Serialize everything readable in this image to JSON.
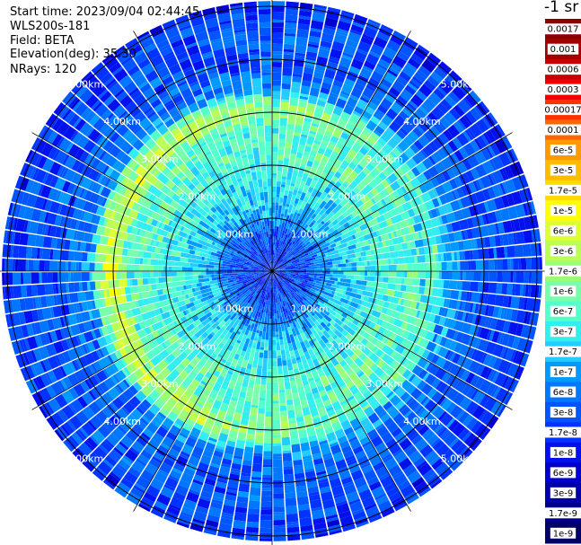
{
  "info": {
    "start_time": "Start time: 2023/09/04 02:44:45",
    "device": "WLS200s-181",
    "field": "Field: BETA",
    "elevation": "Elevation(deg): 35.30",
    "nrays": "NRays: 120"
  },
  "colorbar": {
    "title": "-1 sr",
    "labels": [
      "0.0017",
      "0.001",
      "0.0006",
      "0.0003",
      "0.00017",
      "0.0001",
      "6e-5",
      "3e-5",
      "1.7e-5",
      "1e-5",
      "6e-6",
      "3e-6",
      "1.7e-6",
      "1e-6",
      "6e-7",
      "3e-7",
      "1.7e-7",
      "1e-7",
      "6e-8",
      "3e-8",
      "1.7e-8",
      "1e-8",
      "6e-9",
      "3e-9",
      "1.7e-9",
      "1e-9"
    ],
    "colors": [
      "#8b0000",
      "#a00000",
      "#c80000",
      "#ee0000",
      "#ff3300",
      "#ff6600",
      "#ff9900",
      "#ffbb00",
      "#ffdd00",
      "#ffff00",
      "#ddff33",
      "#bbff55",
      "#99ff77",
      "#77ffaa",
      "#55ffcc",
      "#33eeee",
      "#22ccff",
      "#0099ff",
      "#0077ff",
      "#0055ff",
      "#0033ff",
      "#0011ee",
      "#0000cc",
      "#0000aa",
      "#000088",
      "#000066"
    ]
  },
  "chart_data": {
    "type": "heatmap",
    "projection": "polar-ppi",
    "field": "BETA",
    "unit": "-1 sr",
    "elevation_deg": 35.3,
    "n_rays": 120,
    "range_rings_km": [
      1.0,
      2.0,
      3.0,
      4.0,
      5.0
    ],
    "ring_labels": [
      "1.00km",
      "2.00km",
      "3.00km",
      "4.00km",
      "5.00km"
    ],
    "max_range_km": 5.1,
    "radial_profile": [
      {
        "range_km": 0.25,
        "beta": "1.7e-8"
      },
      {
        "range_km": 0.75,
        "beta": "3e-8"
      },
      {
        "range_km": 1.25,
        "beta": "1.7e-7"
      },
      {
        "range_km": 1.75,
        "beta": "3e-7"
      },
      {
        "range_km": 2.25,
        "beta": "6e-7"
      },
      {
        "range_km": 2.75,
        "beta": "6e-7"
      },
      {
        "range_km": 3.1,
        "beta": "1.7e-6"
      },
      {
        "range_km": 3.5,
        "beta": "6e-8"
      },
      {
        "range_km": 4.0,
        "beta": "3e-8"
      },
      {
        "range_km": 4.5,
        "beta": "3e-8"
      },
      {
        "range_km": 5.0,
        "beta": "1.7e-8"
      }
    ]
  }
}
